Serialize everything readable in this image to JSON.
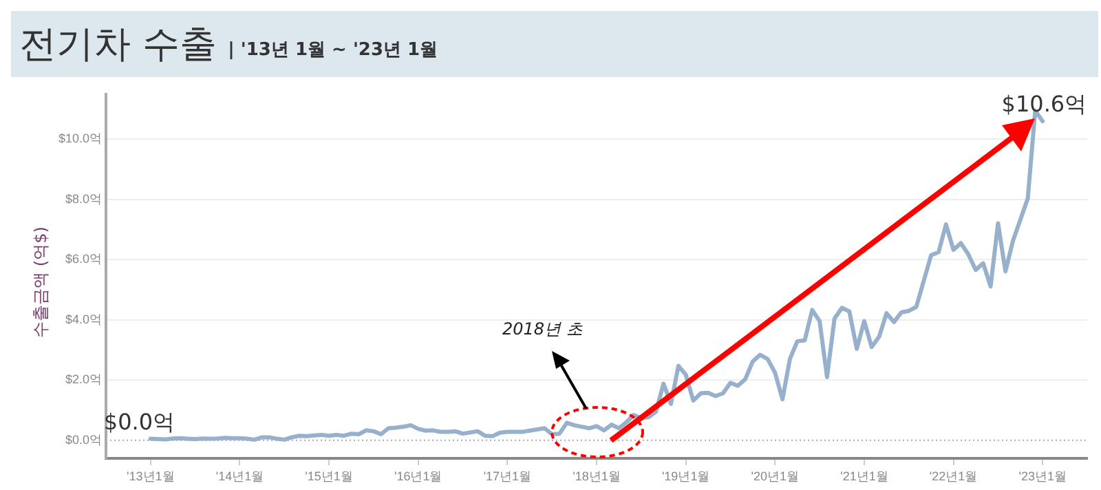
{
  "chart_data": {
    "type": "line",
    "title": "전기차 수출",
    "subtitle": "| '13년 1월 ~ '23년 1월",
    "ylabel": "수출금액 (억$)",
    "categories": [
      "'13년1월",
      null,
      null,
      null,
      null,
      null,
      null,
      null,
      null,
      null,
      null,
      null,
      "'14년1월",
      null,
      null,
      null,
      null,
      null,
      null,
      null,
      null,
      null,
      null,
      null,
      "'15년1월",
      null,
      null,
      null,
      null,
      null,
      null,
      null,
      null,
      null,
      null,
      null,
      "'16년1월",
      null,
      null,
      null,
      null,
      null,
      null,
      null,
      null,
      null,
      null,
      null,
      "'17년1월",
      null,
      null,
      null,
      null,
      null,
      null,
      null,
      null,
      null,
      null,
      null,
      "'18년1월",
      null,
      null,
      null,
      null,
      null,
      null,
      null,
      null,
      null,
      null,
      null,
      "'19년1월",
      null,
      null,
      null,
      null,
      null,
      null,
      null,
      null,
      null,
      null,
      null,
      "'20년1월",
      null,
      null,
      null,
      null,
      null,
      null,
      null,
      null,
      null,
      null,
      null,
      "'21년1월",
      null,
      null,
      null,
      null,
      null,
      null,
      null,
      null,
      null,
      null,
      null,
      "'22년1월",
      null,
      null,
      null,
      null,
      null,
      null,
      null,
      null,
      null,
      null,
      null,
      "'23년1월"
    ],
    "series": [
      {
        "color": "#97b0cc",
        "values": [
          0.05,
          0.04,
          0.03,
          0.06,
          0.07,
          0.05,
          0.04,
          0.06,
          0.05,
          0.06,
          0.08,
          0.07,
          0.07,
          0.05,
          0.02,
          0.1,
          0.1,
          0.05,
          0.02,
          0.1,
          0.15,
          0.14,
          0.16,
          0.18,
          0.15,
          0.18,
          0.15,
          0.22,
          0.2,
          0.33,
          0.3,
          0.2,
          0.4,
          0.42,
          0.45,
          0.5,
          0.38,
          0.32,
          0.33,
          0.28,
          0.28,
          0.3,
          0.22,
          0.26,
          0.3,
          0.15,
          0.14,
          0.25,
          0.28,
          0.28,
          0.28,
          0.32,
          0.36,
          0.4,
          0.2,
          0.22,
          0.58,
          0.5,
          0.45,
          0.4,
          0.47,
          0.33,
          0.52,
          0.4,
          0.6,
          0.84,
          0.73,
          0.77,
          0.96,
          1.88,
          1.21,
          2.47,
          2.18,
          1.32,
          1.56,
          1.58,
          1.47,
          1.56,
          1.91,
          1.81,
          2.03,
          2.62,
          2.84,
          2.7,
          2.25,
          1.36,
          2.7,
          3.29,
          3.32,
          4.33,
          3.96,
          2.1,
          4.04,
          4.4,
          4.28,
          3.04,
          3.96,
          3.1,
          3.44,
          4.22,
          3.93,
          4.25,
          4.3,
          4.43,
          5.29,
          6.15,
          6.25,
          7.17,
          6.33,
          6.55,
          6.18,
          5.66,
          5.88,
          5.11,
          7.21,
          5.61,
          6.62,
          7.33,
          8.03,
          10.95,
          10.6
        ]
      }
    ],
    "ylim": [
      -0.6,
      11.5
    ],
    "yticks": [
      {
        "value": 0,
        "label": "$0.0억"
      },
      {
        "value": 2,
        "label": "$2.0억"
      },
      {
        "value": 4,
        "label": "$4.0억"
      },
      {
        "value": 6,
        "label": "$6.0억"
      },
      {
        "value": 8,
        "label": "$8.0억"
      },
      {
        "value": 10,
        "label": "$10.0억"
      }
    ],
    "ref_lines": [
      {
        "axis": "y",
        "value": 0,
        "color": "#aaaaaa",
        "line_style": "dotted"
      }
    ],
    "grid": "y",
    "legend": false,
    "marker": "none",
    "line_style": "solid",
    "annotations": [
      {
        "text": "$0.0억",
        "x": "'13년1월",
        "y": 0.05
      },
      {
        "text": "$10.6억",
        "x": "'23년1월",
        "y": 10.6
      },
      "2018년 초"
    ]
  }
}
